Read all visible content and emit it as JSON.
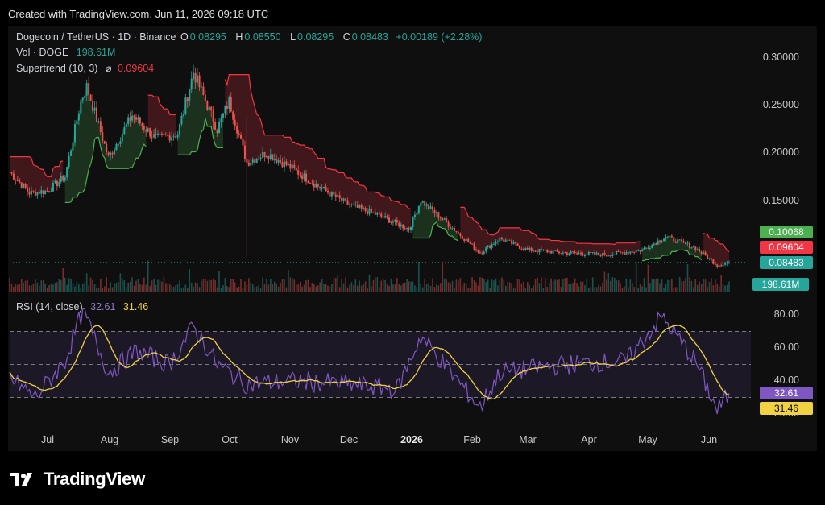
{
  "caption": "Created with TradingView.com, Jun 11, 2026 09:18 UTC",
  "brand": "TradingView",
  "main_legend": {
    "symbol": "Dogecoin / TetherUS · 1D · Binance",
    "o_label": "O",
    "o": "0.08295",
    "h_label": "H",
    "h": "0.08550",
    "l_label": "L",
    "l": "0.08295",
    "c_label": "C",
    "c": "0.08483",
    "change": "+0.00189 (+2.28%)",
    "vol_label": "Vol · DOGE",
    "vol": "198.61M",
    "st_label": "Supertrend (10, 3)",
    "st_icon": "eye-off-icon",
    "st_value": "0.09604"
  },
  "rsi_legend": {
    "label": "RSI (14, close)",
    "rsi": "32.61",
    "ma": "31.46"
  },
  "price_tags": [
    {
      "text": "0.10068",
      "color": "#4caf50"
    },
    {
      "text": "0.09604",
      "color": "#f23645"
    },
    {
      "text": "0.08483",
      "color": "#26a69a"
    },
    {
      "text": "198.61M",
      "color": "#26a69a"
    }
  ],
  "rsi_tags": [
    {
      "text": "32.61",
      "color": "#7e57c2",
      "fg": "#ffffff"
    },
    {
      "text": "31.46",
      "color": "#f0d243",
      "fg": "#000000"
    }
  ],
  "colors": {
    "up": "#26a69a",
    "down": "#ef5350",
    "supertrend_up": "#4caf50",
    "supertrend_down": "#f23645",
    "rsi": "#7e57c2",
    "rsi_ma": "#f0d243"
  },
  "chart_data": [
    {
      "type": "candlestick",
      "title": "Dogecoin / TetherUS · 1D · Binance",
      "y_ticks": [
        "0.30000",
        "0.25000",
        "0.20000",
        "0.15000"
      ],
      "ylim": [
        0.075,
        0.31
      ],
      "x_ticks": [
        "Jul",
        "Aug",
        "Sep",
        "Oct",
        "Nov",
        "Dec",
        "2026",
        "Feb",
        "Mar",
        "Apr",
        "May",
        "Jun"
      ],
      "approx_close_path": [
        {
          "date": "2025-06-12",
          "close": 0.18
        },
        {
          "date": "2025-06-22",
          "close": 0.158
        },
        {
          "date": "2025-07-01",
          "close": 0.16
        },
        {
          "date": "2025-07-10",
          "close": 0.175
        },
        {
          "date": "2025-07-18",
          "close": 0.255
        },
        {
          "date": "2025-07-21",
          "close": 0.27
        },
        {
          "date": "2025-08-01",
          "close": 0.195
        },
        {
          "date": "2025-08-13",
          "close": 0.24
        },
        {
          "date": "2025-08-25",
          "close": 0.215
        },
        {
          "date": "2025-09-05",
          "close": 0.22
        },
        {
          "date": "2025-09-13",
          "close": 0.285
        },
        {
          "date": "2025-09-25",
          "close": 0.225
        },
        {
          "date": "2025-10-01",
          "close": 0.255
        },
        {
          "date": "2025-10-10",
          "close": 0.19
        },
        {
          "date": "2025-10-20",
          "close": 0.2
        },
        {
          "date": "2025-11-01",
          "close": 0.185
        },
        {
          "date": "2025-11-15",
          "close": 0.165
        },
        {
          "date": "2025-12-01",
          "close": 0.145
        },
        {
          "date": "2025-12-15",
          "close": 0.135
        },
        {
          "date": "2025-12-31",
          "close": 0.12
        },
        {
          "date": "2026-01-06",
          "close": 0.15
        },
        {
          "date": "2026-01-20",
          "close": 0.125
        },
        {
          "date": "2026-02-05",
          "close": 0.095
        },
        {
          "date": "2026-02-15",
          "close": 0.11
        },
        {
          "date": "2026-03-01",
          "close": 0.098
        },
        {
          "date": "2026-03-20",
          "close": 0.095
        },
        {
          "date": "2026-04-10",
          "close": 0.093
        },
        {
          "date": "2026-04-28",
          "close": 0.098
        },
        {
          "date": "2026-05-10",
          "close": 0.112
        },
        {
          "date": "2026-05-25",
          "close": 0.1
        },
        {
          "date": "2026-06-05",
          "close": 0.082
        },
        {
          "date": "2026-06-11",
          "close": 0.08483
        }
      ],
      "series": [
        {
          "name": "Supertrend (10, 3)",
          "last": 0.09604
        },
        {
          "name": "Vol · DOGE",
          "last": 198.61
        }
      ]
    },
    {
      "type": "line",
      "title": "RSI (14, close)",
      "y_ticks": [
        "80.00",
        "60.00",
        "40.00",
        "20.00"
      ],
      "ylim": [
        15,
        88
      ],
      "levels": [
        70,
        50,
        30
      ],
      "x_ticks": [
        "Jul",
        "Aug",
        "Sep",
        "Oct",
        "Nov",
        "Dec",
        "2026",
        "Feb",
        "Mar",
        "Apr",
        "May",
        "Jun"
      ],
      "series": [
        {
          "name": "RSI",
          "last": 32.61,
          "approx": [
            {
              "date": "2025-06-12",
              "v": 42
            },
            {
              "date": "2025-06-25",
              "v": 30
            },
            {
              "date": "2025-07-10",
              "v": 52
            },
            {
              "date": "2025-07-19",
              "v": 83
            },
            {
              "date": "2025-08-01",
              "v": 45
            },
            {
              "date": "2025-08-15",
              "v": 58
            },
            {
              "date": "2025-09-01",
              "v": 50
            },
            {
              "date": "2025-09-13",
              "v": 73
            },
            {
              "date": "2025-09-25",
              "v": 50
            },
            {
              "date": "2025-10-10",
              "v": 38
            },
            {
              "date": "2025-11-01",
              "v": 40
            },
            {
              "date": "2025-12-01",
              "v": 38
            },
            {
              "date": "2025-12-25",
              "v": 35
            },
            {
              "date": "2026-01-06",
              "v": 67
            },
            {
              "date": "2026-02-05",
              "v": 24
            },
            {
              "date": "2026-02-15",
              "v": 45
            },
            {
              "date": "2026-03-20",
              "v": 50
            },
            {
              "date": "2026-04-20",
              "v": 52
            },
            {
              "date": "2026-05-08",
              "v": 79
            },
            {
              "date": "2026-05-25",
              "v": 52
            },
            {
              "date": "2026-06-05",
              "v": 22
            },
            {
              "date": "2026-06-11",
              "v": 32.61
            }
          ]
        },
        {
          "name": "RSI MA",
          "last": 31.46
        }
      ]
    }
  ]
}
